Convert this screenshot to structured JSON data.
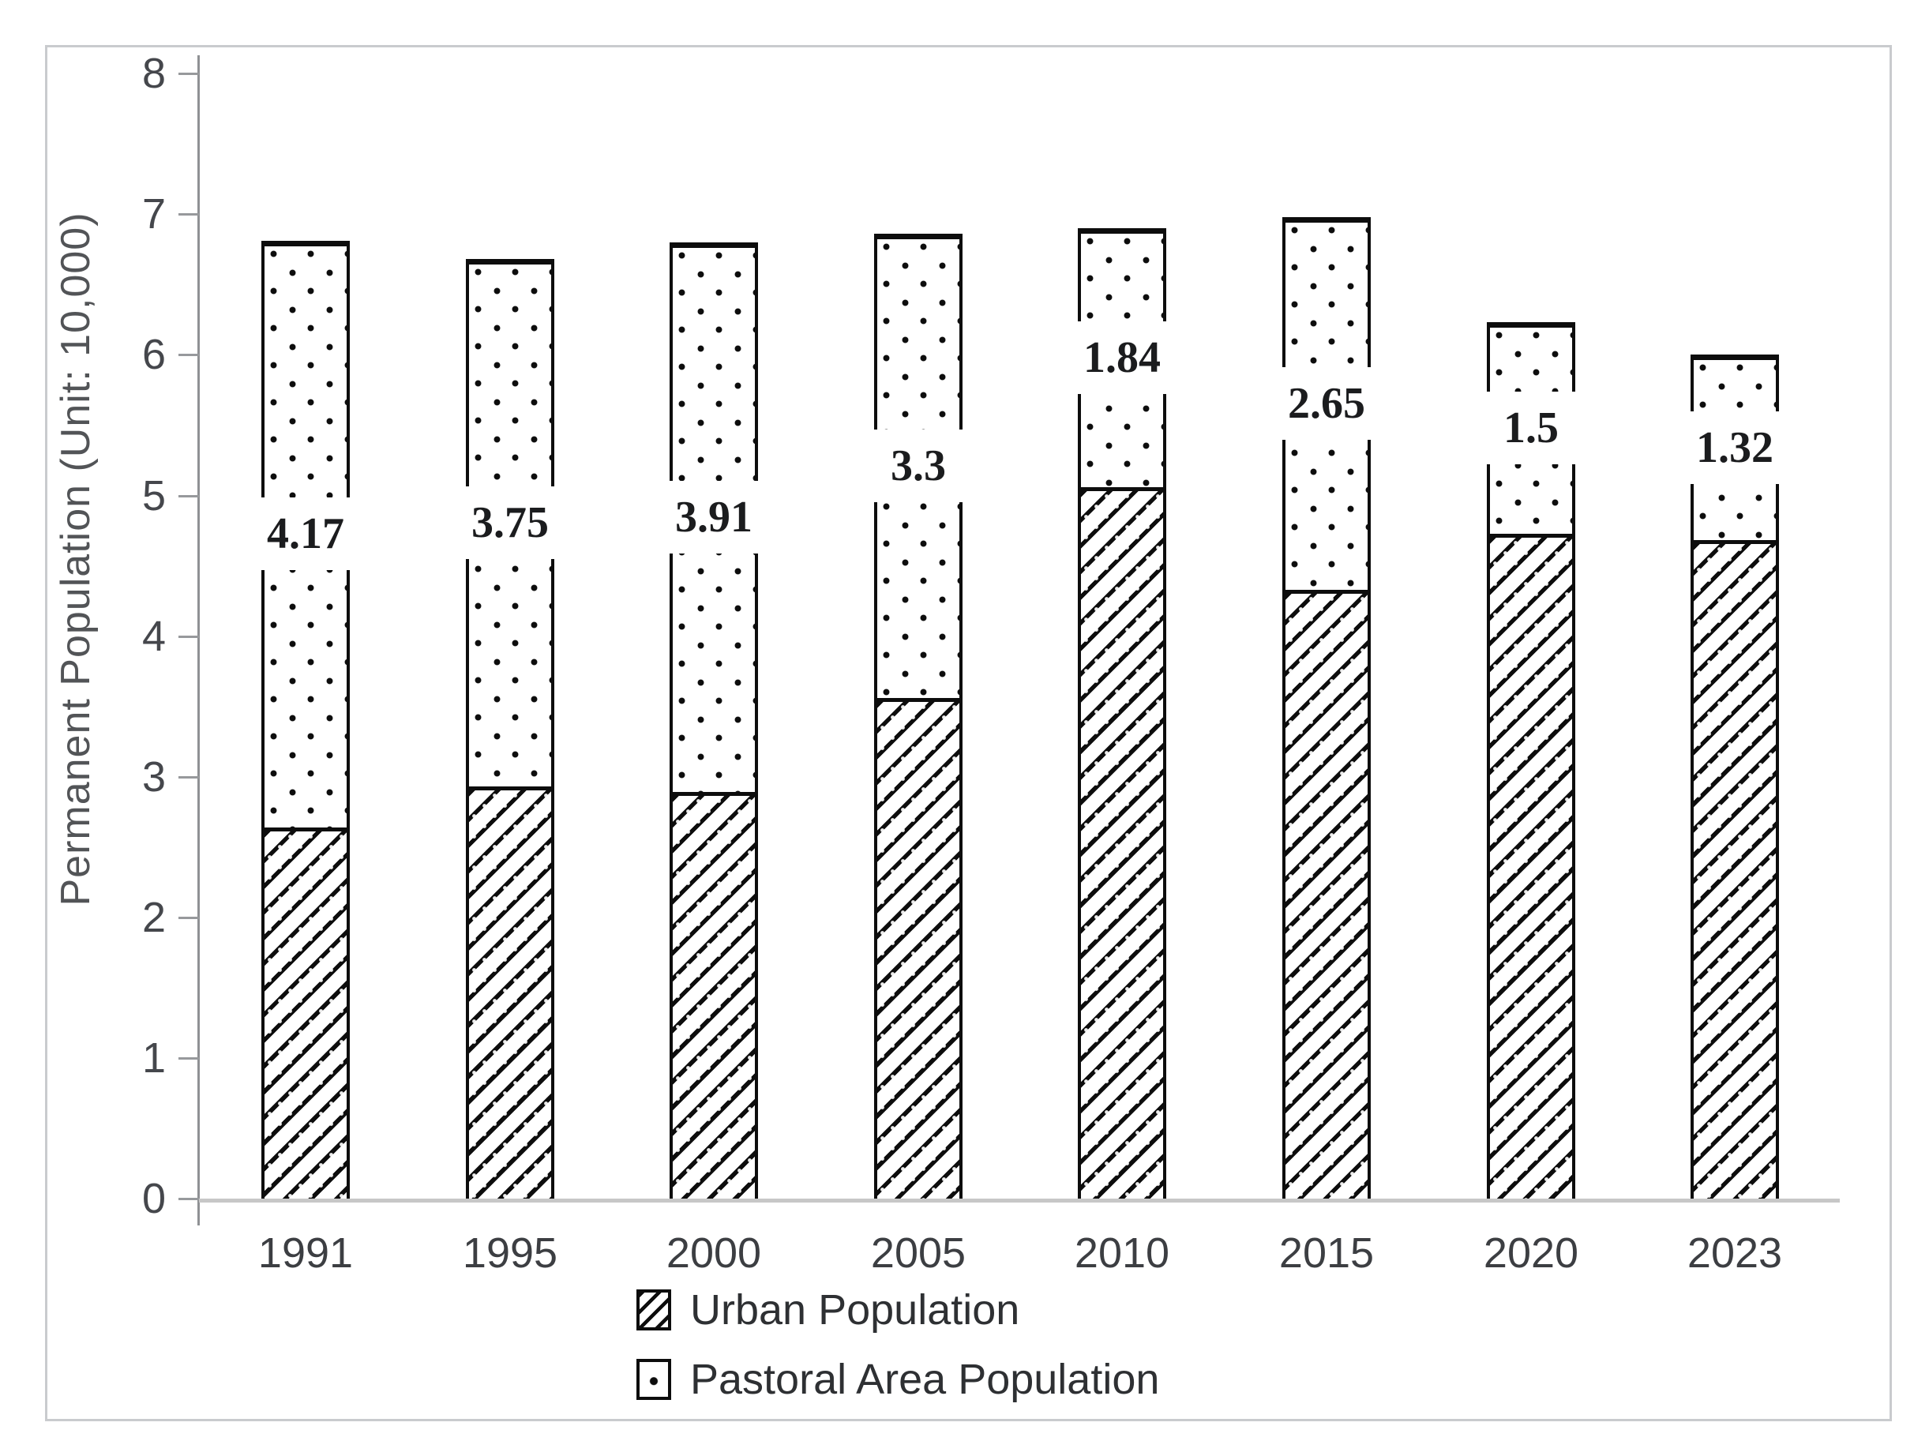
{
  "chart_data": {
    "type": "bar",
    "stacked": true,
    "categories": [
      "1991",
      "1995",
      "2000",
      "2005",
      "2010",
      "2015",
      "2020",
      "2023"
    ],
    "series": [
      {
        "name": "Urban Population",
        "pattern": "diagonal-hatch",
        "values": [
          2.64,
          2.93,
          2.89,
          3.56,
          5.06,
          4.33,
          4.73,
          4.68
        ]
      },
      {
        "name": "Pastoral Area Population",
        "pattern": "dotted",
        "values": [
          4.17,
          3.75,
          3.91,
          3.3,
          1.84,
          2.65,
          1.5,
          1.32
        ],
        "data_labels": [
          "4.17",
          "3.75",
          "3.91",
          "3.3",
          "1.84",
          "2.65",
          "1.5",
          "1.32"
        ]
      }
    ],
    "totals": [
      6.81,
      6.68,
      6.8,
      6.86,
      6.9,
      6.98,
      6.23,
      6.0
    ],
    "ylabel": "Permanent Population (Unit: 10,000)",
    "ylim": [
      0,
      8
    ],
    "yticks": [
      "0",
      "1",
      "2",
      "3",
      "4",
      "5",
      "6",
      "7",
      "8"
    ],
    "xlabel": "",
    "grid": false,
    "legend_position": "bottom-left",
    "bar_fill": "#ffffff",
    "outline_color": "#0d0d0d",
    "axis_color": "#8f9194",
    "baseline_color": "#c7c7c7"
  }
}
